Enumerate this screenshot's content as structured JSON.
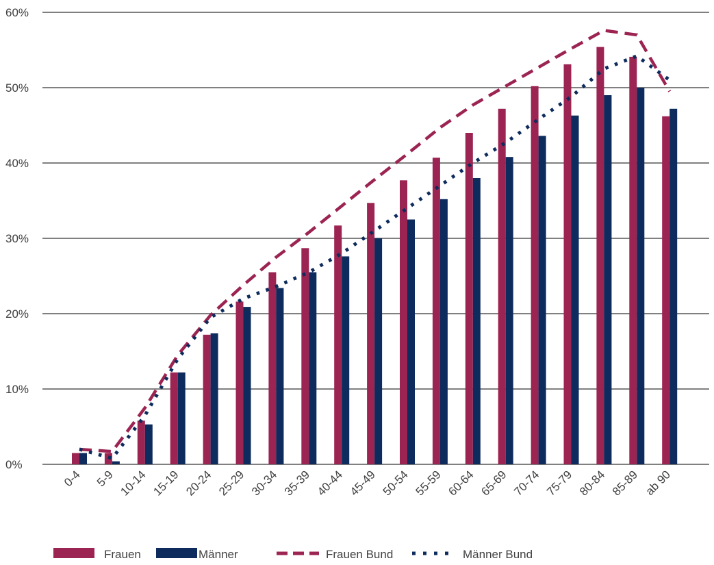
{
  "chart_data": {
    "type": "bar",
    "categories": [
      "0-4",
      "5-9",
      "10-14",
      "15-19",
      "20-24",
      "25-29",
      "30-34",
      "35-39",
      "40-44",
      "45-49",
      "50-54",
      "55-59",
      "60-64",
      "65-69",
      "70-74",
      "75-79",
      "80-84",
      "85-89",
      "ab 90"
    ],
    "series": [
      {
        "name": "Frauen",
        "kind": "bar",
        "color": "#9c2452",
        "values": [
          1.5,
          1.5,
          5.8,
          12.2,
          17.2,
          21.6,
          25.5,
          28.7,
          31.7,
          34.7,
          37.7,
          40.7,
          44.0,
          47.2,
          50.2,
          53.1,
          55.4,
          54.1,
          46.2
        ]
      },
      {
        "name": "Männer",
        "kind": "bar",
        "color": "#0d2b5c",
        "values": [
          1.5,
          0.4,
          5.3,
          12.2,
          17.4,
          20.9,
          23.4,
          25.5,
          27.6,
          30.0,
          32.5,
          35.2,
          38.0,
          40.8,
          43.6,
          46.3,
          49.0,
          50.0,
          47.2
        ]
      },
      {
        "name": "Frauen Bund",
        "kind": "line",
        "style": "dashed",
        "color": "#9c2452",
        "values": [
          2.0,
          1.7,
          7.5,
          14.5,
          19.8,
          23.8,
          27.5,
          30.8,
          34.3,
          37.8,
          41.2,
          44.7,
          47.7,
          50.2,
          52.7,
          55.2,
          57.6,
          57.0,
          49.5
        ]
      },
      {
        "name": "Männer Bund",
        "kind": "line",
        "style": "dotted",
        "color": "#0d2b5c",
        "values": [
          2.0,
          0.8,
          6.5,
          14.0,
          19.5,
          22.0,
          23.6,
          25.5,
          28.0,
          31.0,
          34.0,
          37.0,
          40.0,
          42.7,
          45.8,
          48.8,
          52.5,
          54.2,
          51.0
        ]
      }
    ],
    "y_ticks": [
      "0%",
      "10%",
      "20%",
      "30%",
      "40%",
      "50%",
      "60%"
    ],
    "ylim": [
      0,
      60
    ],
    "grid": true,
    "legend": "bottom"
  }
}
